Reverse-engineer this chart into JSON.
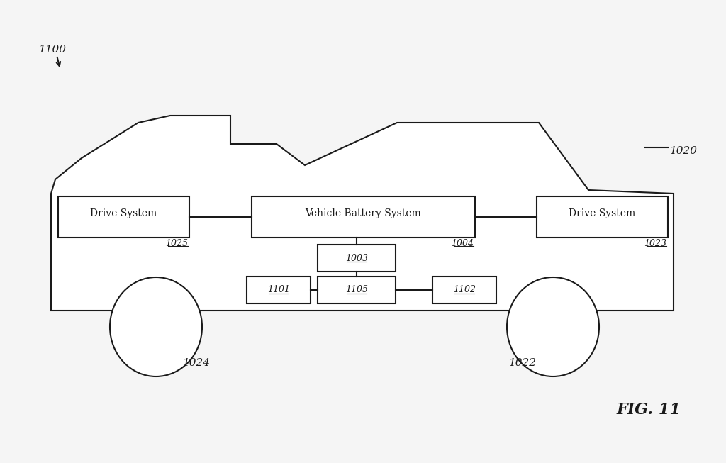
{
  "bg_color": "#f5f5f5",
  "line_color": "#1a1a1a",
  "fig_label": "FIG. 11",
  "label_1100": "1100",
  "label_1020": "1020",
  "label_1025": "1025",
  "label_1023": "1023",
  "label_1004": "1004",
  "label_1024": "1024",
  "label_1022": "1022",
  "label_1003": "1003",
  "label_1101": "1101",
  "label_1105": "1105",
  "label_1102": "1102",
  "text_drive_left": "Drive System",
  "text_battery": "Vehicle Battery System",
  "text_drive_right": "Drive System",
  "font_size_label": 11,
  "font_size_box": 10,
  "font_size_fig": 16
}
